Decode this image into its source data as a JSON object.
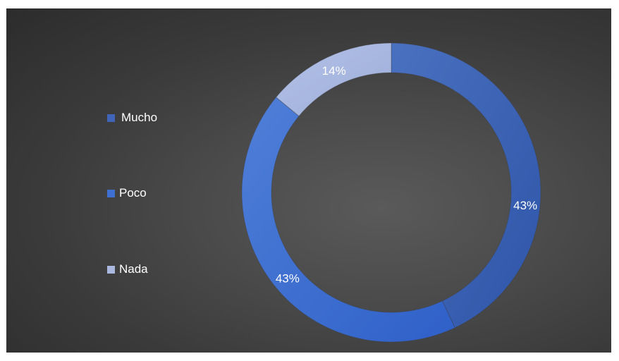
{
  "chart_data": {
    "type": "pie",
    "style": "donut",
    "legend_position": "left",
    "categories": [
      "Mucho",
      "Poco",
      "Nada"
    ],
    "values": [
      43,
      43,
      14
    ],
    "data_labels": [
      "43%",
      "43%",
      "14%"
    ],
    "colors": [
      "#3f64b8",
      "#3f6fd0",
      "#aab8e0"
    ]
  }
}
